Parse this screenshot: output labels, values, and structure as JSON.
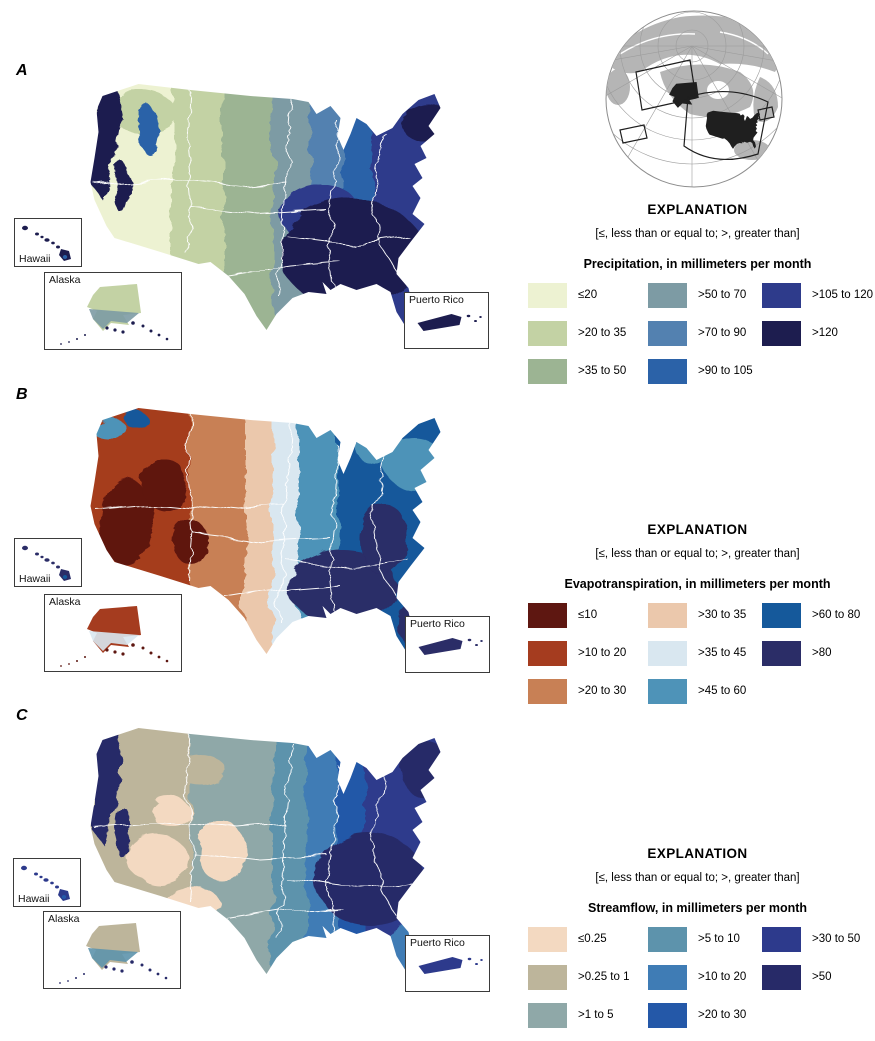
{
  "figure": {
    "explanation_heading": "EXPLANATION",
    "note": "[≤, less than or equal to; >, greater than]",
    "panels": [
      {
        "letter": "A",
        "legend_title": "Precipitation, in millimeters per month",
        "insets": {
          "hawaii": "Hawaii",
          "alaska": "Alaska",
          "puerto_rico": "Puerto Rico"
        },
        "legend": [
          {
            "label": "≤20",
            "color": "#edf2d2"
          },
          {
            "label": ">20 to 35",
            "color": "#c3d2a4"
          },
          {
            "label": ">35 to 50",
            "color": "#9cb493"
          },
          {
            "label": ">50 to 70",
            "color": "#7d9ba4"
          },
          {
            "label": ">70 to 90",
            "color": "#5381b0"
          },
          {
            "label": ">90 to 105",
            "color": "#2b62a8"
          },
          {
            "label": ">105 to 120",
            "color": "#2e3b8b",
            "textured": true
          },
          {
            "label": ">120",
            "color": "#1d1d4f"
          }
        ]
      },
      {
        "letter": "B",
        "legend_title": "Evapotranspiration, in millimeters per month",
        "insets": {
          "hawaii": "Hawaii",
          "alaska": "Alaska",
          "puerto_rico": "Puerto Rico"
        },
        "legend": [
          {
            "label": "≤10",
            "color": "#5e1711"
          },
          {
            "label": ">10 to 20",
            "color": "#a53c1f"
          },
          {
            "label": ">20 to 30",
            "color": "#c88055"
          },
          {
            "label": ">30 to 35",
            "color": "#ebc8ac"
          },
          {
            "label": ">35 to 45",
            "color": "#d9e7f0",
            "textured": true
          },
          {
            "label": ">45 to 60",
            "color": "#4e93b8"
          },
          {
            "label": ">60 to 80",
            "color": "#15599b"
          },
          {
            "label": ">80",
            "color": "#2b2d67",
            "textured": true
          }
        ]
      },
      {
        "letter": "C",
        "legend_title": "Streamflow, in millimeters per month",
        "insets": {
          "hawaii": "Hawaii",
          "alaska": "Alaska",
          "puerto_rico": "Puerto Rico"
        },
        "legend": [
          {
            "label": "≤0.25",
            "color": "#f3d9c1",
            "textured": true
          },
          {
            "label": ">0.25 to 1",
            "color": "#bdb59b"
          },
          {
            "label": ">1 to 5",
            "color": "#8fa8a8"
          },
          {
            "label": ">5 to 10",
            "color": "#5d93ac"
          },
          {
            "label": ">10 to 20",
            "color": "#3f7cb5"
          },
          {
            "label": ">20 to 30",
            "color": "#2458a8"
          },
          {
            "label": ">30 to 50",
            "color": "#2d3a8c",
            "textured": true
          },
          {
            "label": ">50",
            "color": "#272a68"
          }
        ]
      }
    ]
  }
}
